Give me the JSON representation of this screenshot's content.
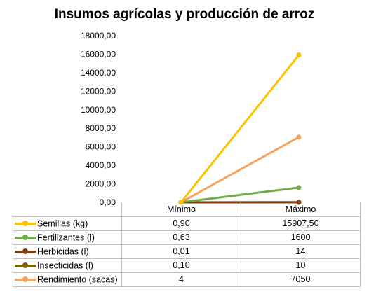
{
  "chart_data": {
    "type": "line",
    "title": "Insumos agrícolas y producción de arroz",
    "categories": [
      "Mínimo",
      "Máximo"
    ],
    "ylim": [
      0,
      18000
    ],
    "y_ticks": [
      "0,00",
      "2000,00",
      "4000,00",
      "6000,00",
      "8000,00",
      "10000,00",
      "12000,00",
      "14000,00",
      "16000,00",
      "18000,00"
    ],
    "legend_placement": "data table below plot",
    "series": [
      {
        "name": "Semillas (kg)",
        "values": [
          0.9,
          15907.5
        ],
        "labels": [
          "0,90",
          "15907,50"
        ],
        "color": "#FFC000"
      },
      {
        "name": "Fertilizantes (l)",
        "values": [
          0.63,
          1600
        ],
        "labels": [
          "0,63",
          "1600"
        ],
        "color": "#70AD47"
      },
      {
        "name": "Herbicidas (l)",
        "values": [
          0.01,
          14
        ],
        "labels": [
          "0,01",
          "14"
        ],
        "color": "#843C0C"
      },
      {
        "name": "Insecticidas (l)",
        "values": [
          0.1,
          10
        ],
        "labels": [
          "0,10",
          "10"
        ],
        "color": "#7F6000"
      },
      {
        "name": "Rendimiento (sacas)",
        "values": [
          4,
          7050
        ],
        "labels": [
          "4",
          "7050"
        ],
        "color": "#F4A460"
      }
    ]
  }
}
